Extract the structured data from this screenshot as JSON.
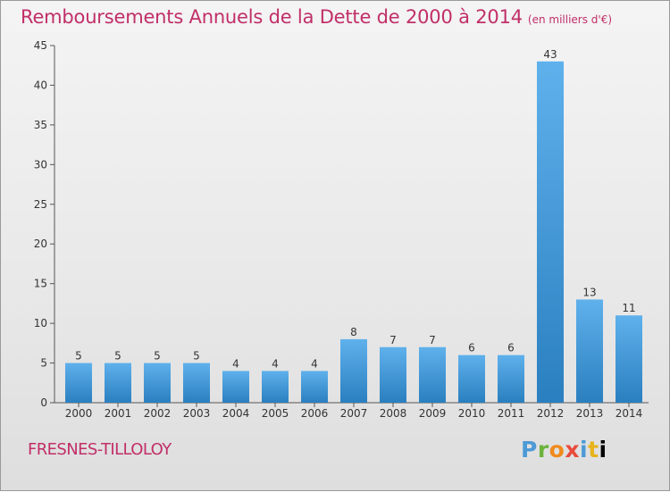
{
  "header": {
    "title": "Remboursements Annuels de la Dette de 2000 à 2014",
    "unit": "(en milliers d'€)"
  },
  "footer": {
    "commune": "FRESNES-TILLOLOY",
    "logo": [
      "P",
      "r",
      "o",
      "x",
      "i",
      "t",
      "i"
    ]
  },
  "colors": {
    "bar_light": "#5fb1ec",
    "bar_dark": "#2a7fbf",
    "title": "#c12f68"
  },
  "chart_data": {
    "type": "bar",
    "categories": [
      "2000",
      "2001",
      "2002",
      "2003",
      "2004",
      "2005",
      "2006",
      "2007",
      "2008",
      "2009",
      "2010",
      "2011",
      "2012",
      "2013",
      "2014"
    ],
    "values": [
      5,
      5,
      5,
      5,
      4,
      4,
      4,
      8,
      7,
      7,
      6,
      6,
      43,
      13,
      11
    ],
    "ylim": [
      0,
      45
    ],
    "yticks": [
      0,
      5,
      10,
      15,
      20,
      25,
      30,
      35,
      40,
      45
    ],
    "grid": false
  }
}
